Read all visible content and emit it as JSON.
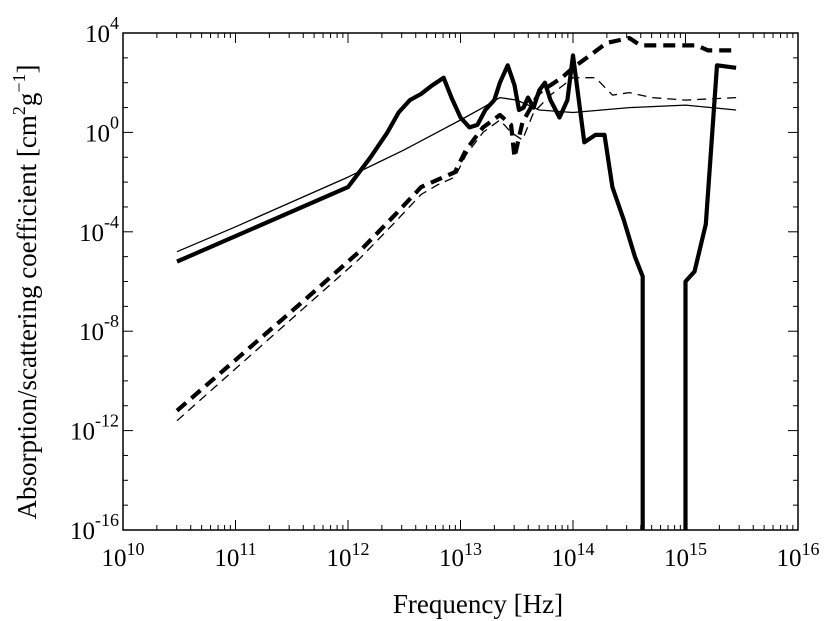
{
  "chart_data": {
    "type": "line",
    "title": "",
    "xlabel": "Frequency [Hz]",
    "ylabel_main": "Absorption/scattering coefficient [cm",
    "ylabel_unit_mid": "g",
    "ylabel_end": "]",
    "ylabel_sup1": "2",
    "ylabel_sup2": "−1",
    "x_scale": "log",
    "y_scale": "log",
    "xlim_exp": [
      10,
      16
    ],
    "ylim_exp": [
      -16,
      4
    ],
    "grid": false,
    "x_ticks": [
      {
        "base": "10",
        "exp": "10",
        "value_exp": 10
      },
      {
        "base": "10",
        "exp": "11",
        "value_exp": 11
      },
      {
        "base": "10",
        "exp": "12",
        "value_exp": 12
      },
      {
        "base": "10",
        "exp": "13",
        "value_exp": 13
      },
      {
        "base": "10",
        "exp": "14",
        "value_exp": 14
      },
      {
        "base": "10",
        "exp": "15",
        "value_exp": 15
      },
      {
        "base": "10",
        "exp": "16",
        "value_exp": 16
      }
    ],
    "y_ticks": [
      {
        "label": "10",
        "exp": "4",
        "value_exp": 4
      },
      {
        "label": "10",
        "exp": "0",
        "value_exp": 0
      },
      {
        "label": "10",
        "exp": "-4",
        "value_exp": -4
      },
      {
        "label": "10",
        "exp": "-8",
        "value_exp": -8
      },
      {
        "label": "10",
        "exp": "-12",
        "value_exp": -12
      },
      {
        "label": "10",
        "exp": "-16",
        "value_exp": -16
      }
    ],
    "series": [
      {
        "name": "absorption-thick-solid",
        "style": "thick-solid",
        "points_log10": [
          [
            10.48,
            -5.2
          ],
          [
            12.0,
            -2.2
          ],
          [
            12.2,
            -1.0
          ],
          [
            12.35,
            0.0
          ],
          [
            12.45,
            0.8
          ],
          [
            12.55,
            1.3
          ],
          [
            12.65,
            1.55
          ],
          [
            12.75,
            1.9
          ],
          [
            12.85,
            2.2
          ],
          [
            12.92,
            1.4
          ],
          [
            13.0,
            0.6
          ],
          [
            13.08,
            0.2
          ],
          [
            13.15,
            0.3
          ],
          [
            13.22,
            0.9
          ],
          [
            13.3,
            1.3
          ],
          [
            13.35,
            2.0
          ],
          [
            13.42,
            2.7
          ],
          [
            13.48,
            1.9
          ],
          [
            13.52,
            0.9
          ],
          [
            13.56,
            1.0
          ],
          [
            13.6,
            1.4
          ],
          [
            13.65,
            1.0
          ],
          [
            13.7,
            1.7
          ],
          [
            13.75,
            2.0
          ],
          [
            13.8,
            1.3
          ],
          [
            13.88,
            0.6
          ],
          [
            13.95,
            1.3
          ],
          [
            14.0,
            3.1
          ],
          [
            14.1,
            -0.4
          ],
          [
            14.2,
            -0.1
          ],
          [
            14.28,
            -0.1
          ],
          [
            14.35,
            -2.2
          ],
          [
            14.45,
            -3.5
          ],
          [
            14.55,
            -5.0
          ],
          [
            14.62,
            -5.8
          ],
          [
            14.62,
            -16.0
          ]
        ]
      },
      {
        "name": "absorption-thick-solid-uv",
        "style": "thick-solid",
        "points_log10": [
          [
            15.0,
            -16.0
          ],
          [
            15.0,
            -6.0
          ],
          [
            15.08,
            -5.6
          ],
          [
            15.18,
            -3.7
          ],
          [
            15.28,
            2.7
          ],
          [
            15.45,
            2.6
          ]
        ]
      },
      {
        "name": "scattering-thin-solid",
        "style": "thin-solid",
        "points_log10": [
          [
            10.48,
            -4.8
          ],
          [
            11.0,
            -3.8
          ],
          [
            12.0,
            -1.8
          ],
          [
            12.5,
            -0.7
          ],
          [
            13.0,
            0.5
          ],
          [
            13.2,
            1.0
          ],
          [
            13.35,
            1.4
          ],
          [
            13.5,
            1.3
          ],
          [
            13.7,
            0.9
          ],
          [
            14.0,
            0.8
          ],
          [
            14.5,
            1.0
          ],
          [
            15.0,
            1.1
          ],
          [
            15.45,
            0.9
          ]
        ]
      },
      {
        "name": "absorption-thick-dashed",
        "style": "thick-dashed",
        "points_log10": [
          [
            10.48,
            -11.2
          ],
          [
            11.6,
            -6.8
          ],
          [
            12.1,
            -4.8
          ],
          [
            12.4,
            -3.4
          ],
          [
            12.65,
            -2.2
          ],
          [
            12.8,
            -1.9
          ],
          [
            12.95,
            -1.6
          ],
          [
            13.05,
            -0.7
          ],
          [
            13.2,
            0.2
          ],
          [
            13.35,
            0.7
          ],
          [
            13.45,
            0.3
          ],
          [
            13.48,
            -1.0
          ],
          [
            13.55,
            0.4
          ],
          [
            13.7,
            1.6
          ],
          [
            13.9,
            2.2
          ],
          [
            14.0,
            2.6
          ],
          [
            14.15,
            3.1
          ],
          [
            14.3,
            3.6
          ],
          [
            14.5,
            3.8
          ],
          [
            14.6,
            3.5
          ],
          [
            14.8,
            3.5
          ],
          [
            15.1,
            3.5
          ],
          [
            15.2,
            3.3
          ],
          [
            15.45,
            3.3
          ]
        ]
      },
      {
        "name": "scattering-thin-dashed",
        "style": "thin-dashed",
        "points_log10": [
          [
            10.48,
            -11.6
          ],
          [
            11.6,
            -7.1
          ],
          [
            12.1,
            -5.1
          ],
          [
            12.4,
            -3.7
          ],
          [
            12.65,
            -2.5
          ],
          [
            12.8,
            -2.1
          ],
          [
            12.95,
            -1.8
          ],
          [
            13.05,
            -0.9
          ],
          [
            13.2,
            0.0
          ],
          [
            13.35,
            0.5
          ],
          [
            13.45,
            0.0
          ],
          [
            13.55,
            -0.3
          ],
          [
            13.65,
            0.8
          ],
          [
            13.8,
            1.5
          ],
          [
            14.0,
            2.2
          ],
          [
            14.2,
            2.2
          ],
          [
            14.35,
            1.5
          ],
          [
            14.5,
            1.6
          ],
          [
            14.7,
            1.4
          ],
          [
            15.0,
            1.3
          ],
          [
            15.45,
            1.4
          ]
        ]
      }
    ]
  }
}
